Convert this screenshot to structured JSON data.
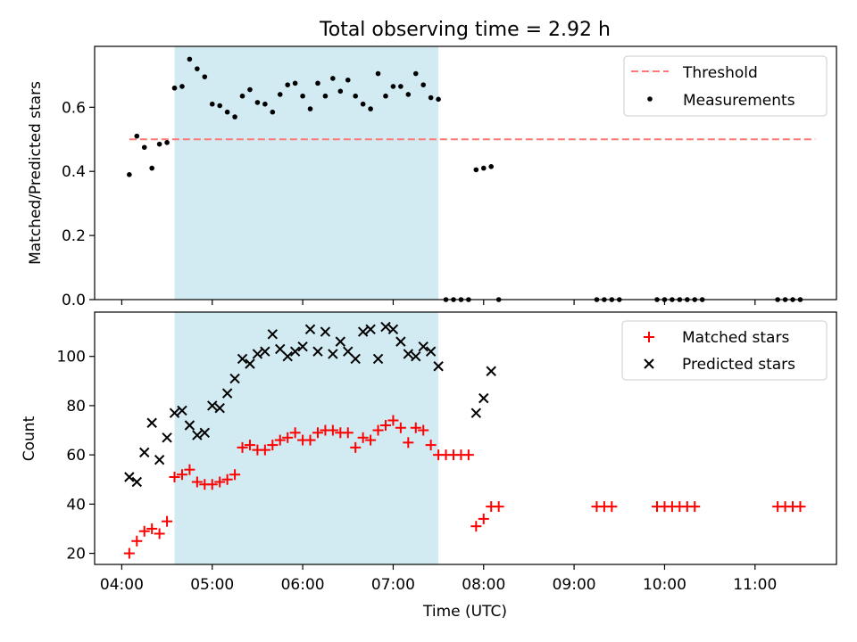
{
  "figure": {
    "title": "Total observing time = 2.92 h",
    "xlabel": "Time (UTC)",
    "shade_range": [
      "04:35",
      "07:30"
    ],
    "shade_color": "#add8e6"
  },
  "chart_data": [
    {
      "type": "scatter",
      "xlim": [
        "03:42",
        "11:54"
      ],
      "ylim": [
        0,
        0.79
      ],
      "ylabel": "Matched/Predicted stars",
      "yticks": [
        0.0,
        0.2,
        0.4,
        0.6
      ],
      "ytick_labels": [
        "0.0",
        "0.2",
        "0.4",
        "0.6"
      ],
      "legend_position": "upper right",
      "threshold": {
        "name": "Threshold",
        "y": 0.5,
        "x_range": [
          "04:05",
          "11:40"
        ],
        "color": "#ff7777"
      },
      "series": [
        {
          "name": "Measurements",
          "color": "#000000",
          "marker": "dot",
          "points": [
            [
              "04:05",
              0.39
            ],
            [
              "04:10",
              0.51
            ],
            [
              "04:15",
              0.475
            ],
            [
              "04:20",
              0.41
            ],
            [
              "04:25",
              0.485
            ],
            [
              "04:30",
              0.49
            ],
            [
              "04:35",
              0.66
            ],
            [
              "04:40",
              0.665
            ],
            [
              "04:45",
              0.75
            ],
            [
              "04:50",
              0.72
            ],
            [
              "04:55",
              0.695
            ],
            [
              "05:00",
              0.61
            ],
            [
              "05:05",
              0.605
            ],
            [
              "05:10",
              0.585
            ],
            [
              "05:15",
              0.57
            ],
            [
              "05:20",
              0.635
            ],
            [
              "05:25",
              0.655
            ],
            [
              "05:30",
              0.615
            ],
            [
              "05:35",
              0.61
            ],
            [
              "05:40",
              0.585
            ],
            [
              "05:45",
              0.64
            ],
            [
              "05:50",
              0.67
            ],
            [
              "05:55",
              0.675
            ],
            [
              "06:00",
              0.635
            ],
            [
              "06:05",
              0.595
            ],
            [
              "06:10",
              0.675
            ],
            [
              "06:15",
              0.635
            ],
            [
              "06:20",
              0.69
            ],
            [
              "06:25",
              0.65
            ],
            [
              "06:30",
              0.685
            ],
            [
              "06:35",
              0.635
            ],
            [
              "06:40",
              0.61
            ],
            [
              "06:45",
              0.595
            ],
            [
              "06:50",
              0.705
            ],
            [
              "06:55",
              0.635
            ],
            [
              "07:00",
              0.665
            ],
            [
              "07:05",
              0.665
            ],
            [
              "07:10",
              0.64
            ],
            [
              "07:15",
              0.705
            ],
            [
              "07:20",
              0.67
            ],
            [
              "07:25",
              0.63
            ],
            [
              "07:30",
              0.625
            ],
            [
              "07:35",
              0.0
            ],
            [
              "07:40",
              0.0
            ],
            [
              "07:45",
              0.0
            ],
            [
              "07:50",
              0.0
            ],
            [
              "07:55",
              0.405
            ],
            [
              "08:00",
              0.41
            ],
            [
              "08:05",
              0.415
            ],
            [
              "08:10",
              0.0
            ],
            [
              "09:15",
              0.0
            ],
            [
              "09:20",
              0.0
            ],
            [
              "09:25",
              0.0
            ],
            [
              "09:30",
              0.0
            ],
            [
              "09:55",
              0.0
            ],
            [
              "10:00",
              0.0
            ],
            [
              "10:05",
              0.0
            ],
            [
              "10:10",
              0.0
            ],
            [
              "10:15",
              0.0
            ],
            [
              "10:20",
              0.0
            ],
            [
              "10:25",
              0.0
            ],
            [
              "11:15",
              0.0
            ],
            [
              "11:20",
              0.0
            ],
            [
              "11:25",
              0.0
            ],
            [
              "11:30",
              0.0
            ]
          ]
        }
      ]
    },
    {
      "type": "scatter",
      "xlim": [
        "03:42",
        "11:54"
      ],
      "ylim": [
        15.5,
        118
      ],
      "xlabel": "Time (UTC)",
      "ylabel": "Count",
      "yticks": [
        20,
        40,
        60,
        80,
        100
      ],
      "ytick_labels": [
        "20",
        "40",
        "60",
        "80",
        "100"
      ],
      "xticks": [
        "04:00",
        "05:00",
        "06:00",
        "07:00",
        "08:00",
        "09:00",
        "10:00",
        "11:00"
      ],
      "xtick_labels": [
        "04:00",
        "05:00",
        "06:00",
        "07:00",
        "08:00",
        "09:00",
        "10:00",
        "11:00"
      ],
      "legend_position": "upper right",
      "series": [
        {
          "name": "Matched stars",
          "color": "#ff0000",
          "marker": "plus",
          "points": [
            [
              "04:05",
              20
            ],
            [
              "04:10",
              25
            ],
            [
              "04:15",
              29
            ],
            [
              "04:20",
              30
            ],
            [
              "04:25",
              28
            ],
            [
              "04:30",
              33
            ],
            [
              "04:35",
              51
            ],
            [
              "04:40",
              52
            ],
            [
              "04:45",
              54
            ],
            [
              "04:50",
              49
            ],
            [
              "04:55",
              48
            ],
            [
              "05:00",
              48
            ],
            [
              "05:05",
              49
            ],
            [
              "05:10",
              50
            ],
            [
              "05:15",
              52
            ],
            [
              "05:20",
              63
            ],
            [
              "05:25",
              64
            ],
            [
              "05:30",
              62
            ],
            [
              "05:35",
              62
            ],
            [
              "05:40",
              64
            ],
            [
              "05:45",
              66
            ],
            [
              "05:50",
              67
            ],
            [
              "05:55",
              69
            ],
            [
              "06:00",
              66
            ],
            [
              "06:05",
              66
            ],
            [
              "06:10",
              69
            ],
            [
              "06:15",
              70
            ],
            [
              "06:20",
              70
            ],
            [
              "06:25",
              69
            ],
            [
              "06:30",
              69
            ],
            [
              "06:35",
              63
            ],
            [
              "06:40",
              67
            ],
            [
              "06:45",
              66
            ],
            [
              "06:50",
              70
            ],
            [
              "06:55",
              72
            ],
            [
              "07:00",
              74
            ],
            [
              "07:05",
              71
            ],
            [
              "07:10",
              65
            ],
            [
              "07:15",
              71
            ],
            [
              "07:20",
              70
            ],
            [
              "07:25",
              64
            ],
            [
              "07:30",
              60
            ],
            [
              "07:35",
              60
            ],
            [
              "07:40",
              60
            ],
            [
              "07:45",
              60
            ],
            [
              "07:50",
              60
            ],
            [
              "07:55",
              31
            ],
            [
              "08:00",
              34
            ],
            [
              "08:05",
              39
            ],
            [
              "08:10",
              39
            ],
            [
              "09:15",
              39
            ],
            [
              "09:20",
              39
            ],
            [
              "09:25",
              39
            ],
            [
              "09:55",
              39
            ],
            [
              "10:00",
              39
            ],
            [
              "10:05",
              39
            ],
            [
              "10:10",
              39
            ],
            [
              "10:15",
              39
            ],
            [
              "10:20",
              39
            ],
            [
              "11:15",
              39
            ],
            [
              "11:20",
              39
            ],
            [
              "11:25",
              39
            ],
            [
              "11:30",
              39
            ]
          ]
        },
        {
          "name": "Predicted stars",
          "color": "#000000",
          "marker": "x",
          "points": [
            [
              "04:05",
              51
            ],
            [
              "04:10",
              49
            ],
            [
              "04:15",
              61
            ],
            [
              "04:20",
              73
            ],
            [
              "04:25",
              58
            ],
            [
              "04:30",
              67
            ],
            [
              "04:35",
              77
            ],
            [
              "04:40",
              78
            ],
            [
              "04:45",
              72
            ],
            [
              "04:50",
              68
            ],
            [
              "04:55",
              69
            ],
            [
              "05:00",
              80
            ],
            [
              "05:05",
              79
            ],
            [
              "05:10",
              85
            ],
            [
              "05:15",
              91
            ],
            [
              "05:20",
              99
            ],
            [
              "05:25",
              97
            ],
            [
              "05:30",
              101
            ],
            [
              "05:35",
              102
            ],
            [
              "05:40",
              109
            ],
            [
              "05:45",
              103
            ],
            [
              "05:50",
              100
            ],
            [
              "05:55",
              102
            ],
            [
              "06:00",
              104
            ],
            [
              "06:05",
              111
            ],
            [
              "06:10",
              102
            ],
            [
              "06:15",
              110
            ],
            [
              "06:20",
              101
            ],
            [
              "06:25",
              106
            ],
            [
              "06:30",
              102
            ],
            [
              "06:35",
              99
            ],
            [
              "06:40",
              110
            ],
            [
              "06:45",
              111
            ],
            [
              "06:50",
              99
            ],
            [
              "06:55",
              112
            ],
            [
              "07:00",
              111
            ],
            [
              "07:05",
              106
            ],
            [
              "07:10",
              101
            ],
            [
              "07:15",
              100
            ],
            [
              "07:20",
              104
            ],
            [
              "07:25",
              102
            ],
            [
              "07:30",
              96
            ],
            [
              "07:55",
              77
            ],
            [
              "08:00",
              83
            ],
            [
              "08:05",
              94
            ]
          ]
        }
      ]
    }
  ]
}
